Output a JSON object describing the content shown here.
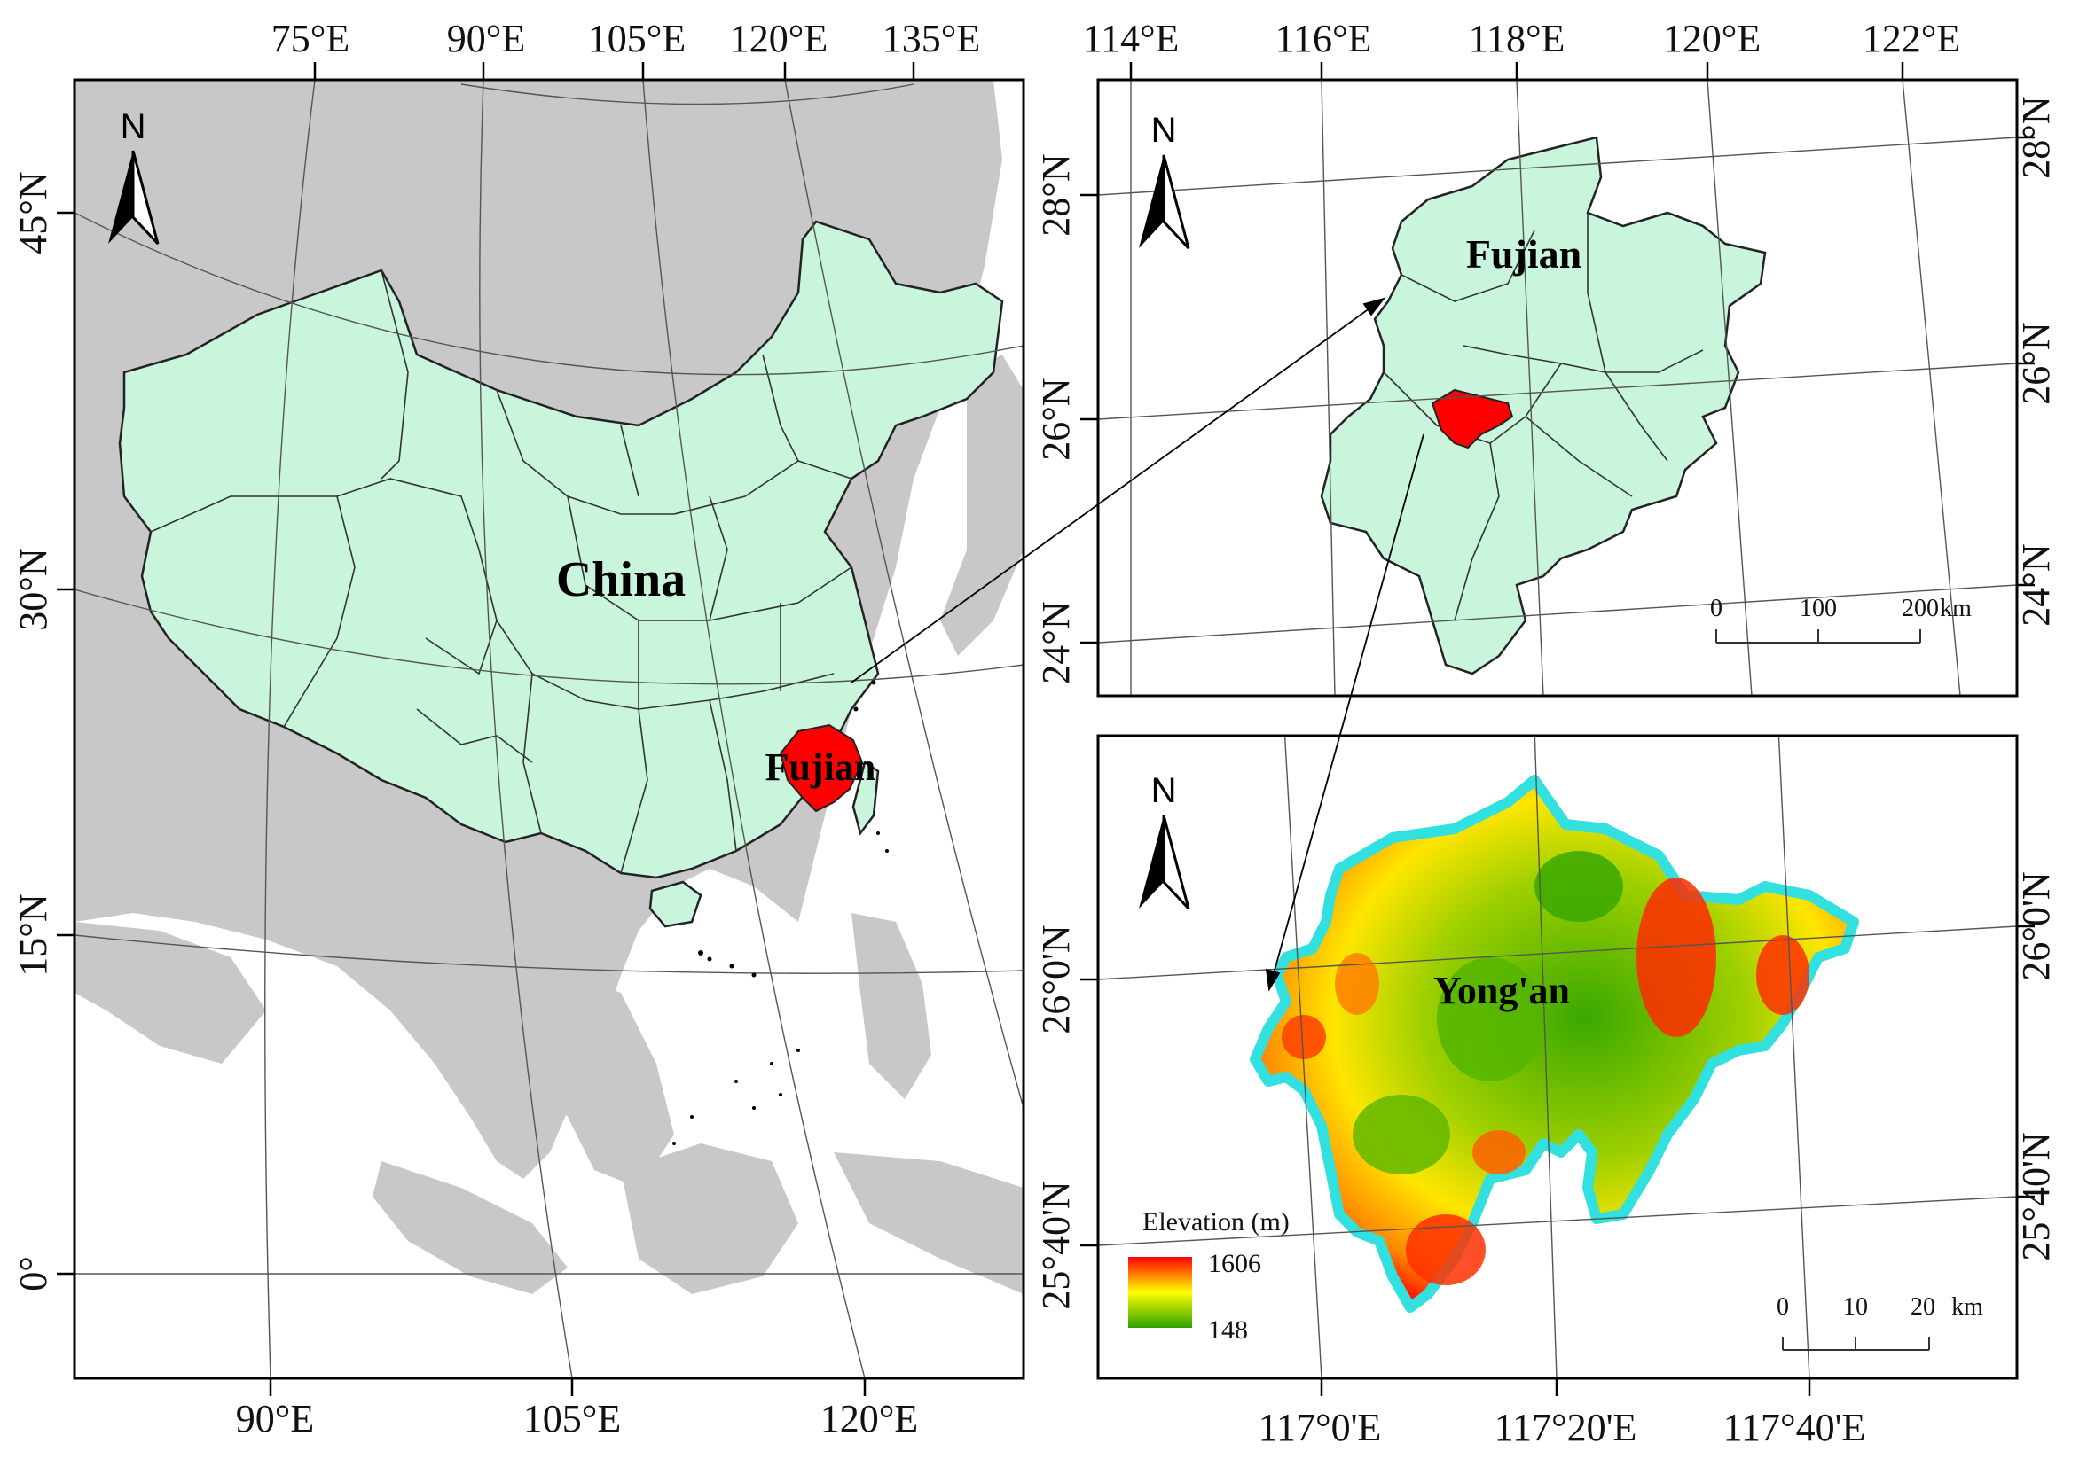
{
  "panels": {
    "china": {
      "label": "China",
      "highlight_label": "Fujian",
      "north": "N",
      "top_ticks": [
        "75°E",
        "90°E",
        "105°E",
        "120°E",
        "135°E"
      ],
      "bottom_ticks": [
        "90°E",
        "105°E",
        "120°E"
      ],
      "left_ticks": [
        "45°N",
        "30°N",
        "15°N",
        "0°"
      ],
      "colors": {
        "sea": "#ffffff",
        "land": "#c8c8c8",
        "china": "#c9f5dc",
        "highlight": "#ff0000"
      }
    },
    "fujian": {
      "label": "Fujian",
      "north": "N",
      "top_ticks": [
        "114°E",
        "116°E",
        "118°E",
        "120°E",
        "122°E"
      ],
      "left_ticks": [
        "28°N",
        "26°N",
        "24°N"
      ],
      "right_ticks": [
        "28°N",
        "26°N",
        "24°N"
      ],
      "scale": {
        "ticks": [
          "0",
          "100",
          "200"
        ],
        "unit": "km"
      },
      "colors": {
        "province": "#c9f5dc",
        "highlight": "#ff0000"
      }
    },
    "yongan": {
      "label": "Yong'an",
      "north": "N",
      "bottom_ticks": [
        "117°0'E",
        "117°20'E",
        "117°40'E"
      ],
      "left_ticks": [
        "26°0'N",
        "25°40'N"
      ],
      "right_ticks": [
        "26°0'N",
        "25°40'N"
      ],
      "scale": {
        "ticks": [
          "0",
          "10",
          "20"
        ],
        "unit": "km"
      },
      "legend": {
        "title": "Elevation (m)",
        "max": "1606",
        "min": "148"
      },
      "colors": {
        "outline": "#33e0e0",
        "high": "#ff0000",
        "mid": "#ffff00",
        "low": "#2fa000"
      }
    }
  }
}
